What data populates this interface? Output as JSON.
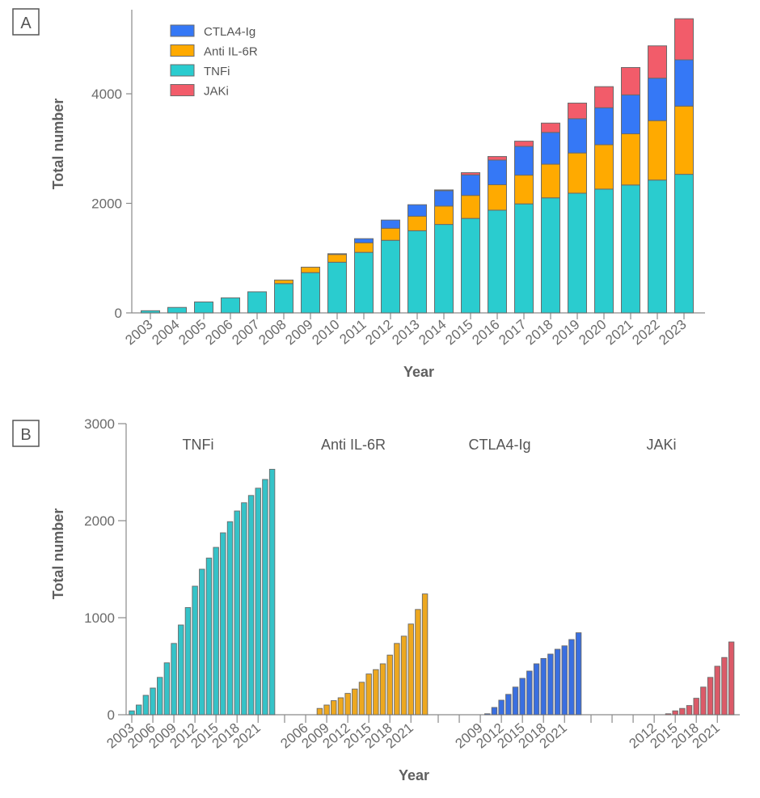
{
  "chart_data": [
    {
      "panel": "A",
      "type": "bar",
      "stacked": true,
      "title": "",
      "xlabel": "Year",
      "ylabel": "Total number",
      "ylim": [
        0,
        5500
      ],
      "yticks": [
        0,
        2000,
        4000
      ],
      "legend": {
        "placement": "top-left",
        "entries": [
          "CTLA4-Ig",
          "Anti IL-6R",
          "TNFi",
          "JAKi"
        ]
      },
      "categories": [
        "2003",
        "2004",
        "2005",
        "2006",
        "2007",
        "2008",
        "2009",
        "2010",
        "2011",
        "2012",
        "2013",
        "2014",
        "2015",
        "2016",
        "2017",
        "2018",
        "2019",
        "2020",
        "2021",
        "2022",
        "2023"
      ],
      "series": [
        {
          "name": "TNFi",
          "color": "#2ACCCF",
          "values": [
            40,
            100,
            200,
            275,
            385,
            535,
            735,
            925,
            1105,
            1325,
            1500,
            1615,
            1725,
            1875,
            1990,
            2100,
            2185,
            2260,
            2335,
            2425,
            2530
          ]
        },
        {
          "name": "Anti IL-6R",
          "color": "#FFAA00",
          "values": [
            0,
            0,
            0,
            0,
            0,
            65,
            100,
            145,
            175,
            220,
            265,
            335,
            420,
            465,
            525,
            615,
            735,
            810,
            935,
            1085,
            1245
          ]
        },
        {
          "name": "CTLA4-Ig",
          "color": "#3578F6",
          "values": [
            0,
            0,
            0,
            0,
            0,
            0,
            0,
            10,
            75,
            150,
            210,
            285,
            375,
            450,
            525,
            580,
            625,
            675,
            710,
            775,
            845
          ]
        },
        {
          "name": "JAKi",
          "color": "#F25C6A",
          "values": [
            0,
            0,
            0,
            0,
            0,
            0,
            0,
            0,
            0,
            0,
            0,
            10,
            40,
            65,
            95,
            170,
            285,
            385,
            500,
            590,
            750
          ]
        }
      ]
    },
    {
      "panel": "B",
      "type": "bar",
      "stacked": false,
      "title": "",
      "xlabel": "Year",
      "ylabel": "Total number",
      "ylim": [
        0,
        3000
      ],
      "yticks": [
        0,
        1000,
        2000,
        3000
      ],
      "groups": [
        {
          "name": "TNFi",
          "color": "#35C3C8",
          "years": [
            2003,
            2004,
            2005,
            2006,
            2007,
            2008,
            2009,
            2010,
            2011,
            2012,
            2013,
            2014,
            2015,
            2016,
            2017,
            2018,
            2019,
            2020,
            2021,
            2022,
            2023
          ],
          "tick_labels": [
            "2003",
            "2006",
            "2009",
            "2012",
            "2015",
            "2018",
            "2021"
          ],
          "values": [
            40,
            100,
            200,
            275,
            385,
            535,
            735,
            925,
            1105,
            1325,
            1500,
            1615,
            1725,
            1875,
            1990,
            2100,
            2185,
            2260,
            2335,
            2425,
            2530
          ]
        },
        {
          "name": "Anti IL-6R",
          "color": "#EDA820",
          "years": [
            2003,
            2004,
            2005,
            2006,
            2007,
            2008,
            2009,
            2010,
            2011,
            2012,
            2013,
            2014,
            2015,
            2016,
            2017,
            2018,
            2019,
            2020,
            2021,
            2022,
            2023
          ],
          "tick_labels": [
            "",
            "2006",
            "2009",
            "2012",
            "2015",
            "2018",
            "2021"
          ],
          "values": [
            0,
            0,
            0,
            0,
            0,
            65,
            100,
            145,
            175,
            220,
            265,
            335,
            420,
            465,
            525,
            615,
            735,
            810,
            935,
            1085,
            1245
          ]
        },
        {
          "name": "CTLA4-Ig",
          "color": "#3A6FE0",
          "years": [
            2003,
            2004,
            2005,
            2006,
            2007,
            2008,
            2009,
            2010,
            2011,
            2012,
            2013,
            2014,
            2015,
            2016,
            2017,
            2018,
            2019,
            2020,
            2021,
            2022,
            2023
          ],
          "tick_labels": [
            "",
            "",
            "2009",
            "2012",
            "2015",
            "2018",
            "2021"
          ],
          "values": [
            0,
            0,
            0,
            0,
            0,
            0,
            0,
            10,
            75,
            150,
            210,
            285,
            375,
            450,
            525,
            580,
            625,
            675,
            710,
            775,
            845
          ]
        },
        {
          "name": "JAKi",
          "color": "#DB5A68",
          "years": [
            2003,
            2004,
            2005,
            2006,
            2007,
            2008,
            2009,
            2010,
            2011,
            2012,
            2013,
            2014,
            2015,
            2016,
            2017,
            2018,
            2019,
            2020,
            2021,
            2022,
            2023
          ],
          "tick_labels": [
            "",
            "",
            "",
            "2012",
            "2015",
            "2018",
            "2021"
          ],
          "values": [
            0,
            0,
            0,
            0,
            0,
            0,
            0,
            0,
            0,
            0,
            0,
            10,
            40,
            65,
            95,
            170,
            285,
            385,
            500,
            590,
            750
          ]
        }
      ]
    }
  ],
  "labels": {
    "panel_a": "A",
    "panel_b": "B",
    "ylabel": "Total number",
    "xlabel": "Year"
  }
}
